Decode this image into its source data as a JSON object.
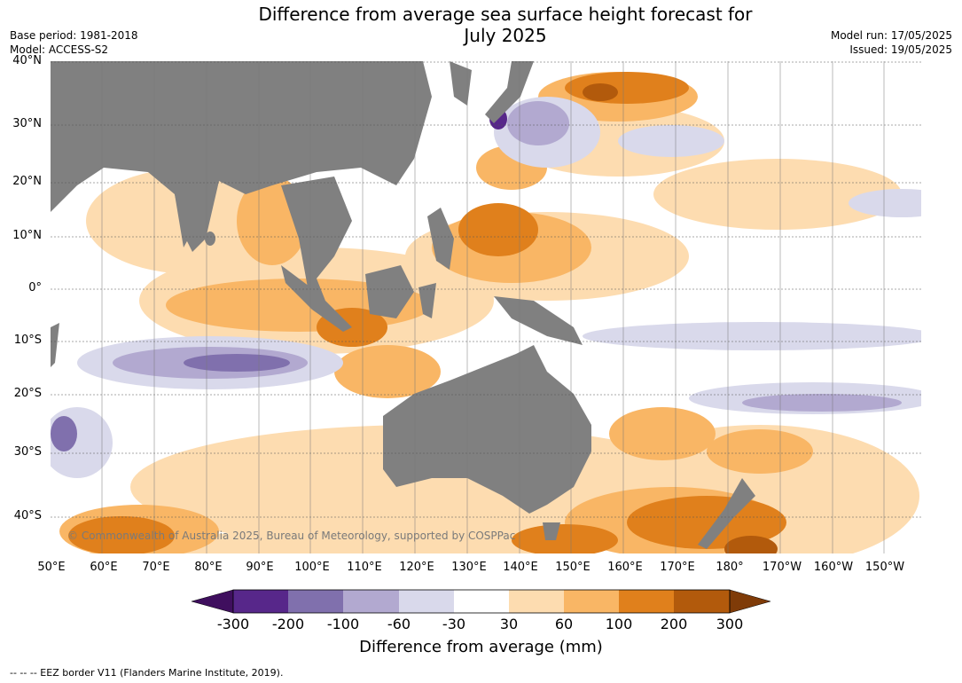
{
  "header": {
    "title_line1": "Difference from average sea surface height forecast for",
    "title_line2": "July 2025",
    "base_period": "Base period: 1981-2018",
    "model": "Model: ACCESS-S2",
    "model_run": "Model run: 17/05/2025",
    "issued": "Issued: 19/05/2025"
  },
  "map": {
    "lat_labels": [
      "40°N",
      "30°N",
      "20°N",
      "10°N",
      "0°",
      "10°S",
      "20°S",
      "30°S",
      "40°S"
    ],
    "lon_labels": [
      "50°E",
      "60°E",
      "70°E",
      "80°E",
      "90°E",
      "100°E",
      "110°E",
      "120°E",
      "130°E",
      "140°E",
      "150°E",
      "160°E",
      "170°E",
      "180°",
      "170°W",
      "160°W",
      "150°W"
    ],
    "copyright": "© Commonwealth of Australia 2025, Bureau of Meteorology, supported by COSPPac",
    "land_color": "#808080"
  },
  "legend": {
    "title": "Difference from average (mm)",
    "ticks": [
      "-300",
      "-200",
      "-100",
      "-60",
      "-30",
      "30",
      "60",
      "100",
      "200",
      "300"
    ],
    "colors": [
      "#3f0f5e",
      "#57278a",
      "#8070ad",
      "#b2a9d0",
      "#d9d9eb",
      "#ffffff",
      "#fddcb0",
      "#f9b665",
      "#e0801c",
      "#b25a0c",
      "#7f3b08"
    ]
  },
  "footnote": "-- -- -- EEZ border V11 (Flanders Marine Institute, 2019)."
}
